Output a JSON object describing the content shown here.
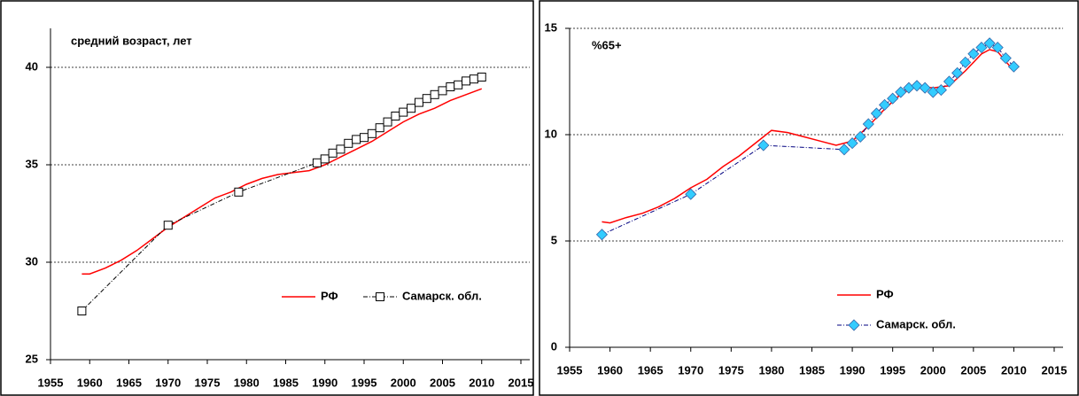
{
  "chart_data": [
    {
      "type": "line",
      "title": "средний возраст, лет",
      "xlim": [
        1955,
        2015
      ],
      "xticks": [
        1955,
        1960,
        1965,
        1970,
        1975,
        1980,
        1985,
        1990,
        1995,
        2000,
        2005,
        2010,
        2015
      ],
      "ylim": [
        25,
        42
      ],
      "yticks": [
        25,
        30,
        35,
        40
      ],
      "grid": true,
      "legend": "lower right",
      "series": [
        {
          "name": "РФ",
          "color": "#ff0000",
          "legend_text_color": "#ff0000",
          "marker": "none",
          "dash": "solid",
          "x": [
            1959,
            1960,
            1962,
            1964,
            1966,
            1968,
            1970,
            1972,
            1974,
            1976,
            1978,
            1980,
            1982,
            1984,
            1986,
            1988,
            1990,
            1992,
            1994,
            1996,
            1998,
            2000,
            2002,
            2004,
            2006,
            2008,
            2010
          ],
          "values": [
            29.4,
            29.4,
            29.7,
            30.1,
            30.6,
            31.2,
            31.8,
            32.3,
            32.8,
            33.3,
            33.6,
            34.0,
            34.3,
            34.5,
            34.6,
            34.7,
            35.0,
            35.4,
            35.8,
            36.2,
            36.7,
            37.2,
            37.6,
            37.9,
            38.3,
            38.6,
            38.9
          ]
        },
        {
          "name": "Самарск. обл.",
          "color": "#000000",
          "legend_text_color": "#000000",
          "marker": "square",
          "dash": "dashdot",
          "x": [
            1959,
            1970,
            1979,
            1989,
            1990,
            1991,
            1992,
            1993,
            1994,
            1995,
            1996,
            1997,
            1998,
            1999,
            2000,
            2001,
            2002,
            2003,
            2004,
            2005,
            2006,
            2007,
            2008,
            2009,
            2010
          ],
          "values": [
            27.5,
            31.9,
            33.6,
            35.1,
            35.3,
            35.6,
            35.8,
            36.1,
            36.3,
            36.4,
            36.6,
            36.9,
            37.2,
            37.5,
            37.7,
            37.9,
            38.2,
            38.4,
            38.6,
            38.8,
            39.0,
            39.1,
            39.3,
            39.4,
            39.5
          ]
        }
      ]
    },
    {
      "type": "line",
      "title": "%65+",
      "xlim": [
        1955,
        2015
      ],
      "xticks": [
        1955,
        1960,
        1965,
        1970,
        1975,
        1980,
        1985,
        1990,
        1995,
        2000,
        2005,
        2010,
        2015
      ],
      "ylim": [
        0,
        15
      ],
      "yticks": [
        0,
        5,
        10,
        15
      ],
      "grid": true,
      "legend": "lower center",
      "series": [
        {
          "name": "РФ",
          "color": "#ff0000",
          "legend_text_color": "#ff0000",
          "marker": "none",
          "dash": "solid",
          "x": [
            1959,
            1960,
            1962,
            1964,
            1966,
            1968,
            1970,
            1972,
            1974,
            1976,
            1978,
            1980,
            1982,
            1984,
            1986,
            1988,
            1990,
            1992,
            1994,
            1996,
            1998,
            2000,
            2002,
            2004,
            2006,
            2007,
            2008,
            2010
          ],
          "values": [
            5.9,
            5.85,
            6.1,
            6.3,
            6.6,
            7.0,
            7.5,
            7.9,
            8.5,
            9.0,
            9.6,
            10.2,
            10.1,
            9.9,
            9.7,
            9.5,
            9.7,
            10.4,
            11.2,
            11.9,
            12.3,
            12.2,
            12.3,
            13.0,
            13.8,
            14.0,
            13.9,
            13.0
          ]
        },
        {
          "name": "Самарск. обл.",
          "color": "#000080",
          "legend_text_color": "#000000",
          "marker": "diamond",
          "marker_fill": "#33ccff",
          "dash": "dashdot",
          "x": [
            1959,
            1970,
            1979,
            1989,
            1990,
            1991,
            1992,
            1993,
            1994,
            1995,
            1996,
            1997,
            1998,
            1999,
            2000,
            2001,
            2002,
            2003,
            2004,
            2005,
            2006,
            2007,
            2008,
            2009,
            2010
          ],
          "values": [
            5.3,
            7.2,
            9.5,
            9.3,
            9.6,
            9.9,
            10.5,
            11.0,
            11.4,
            11.7,
            12.0,
            12.2,
            12.3,
            12.2,
            12.0,
            12.1,
            12.5,
            12.9,
            13.4,
            13.8,
            14.1,
            14.3,
            14.1,
            13.6,
            13.2
          ]
        }
      ]
    }
  ]
}
